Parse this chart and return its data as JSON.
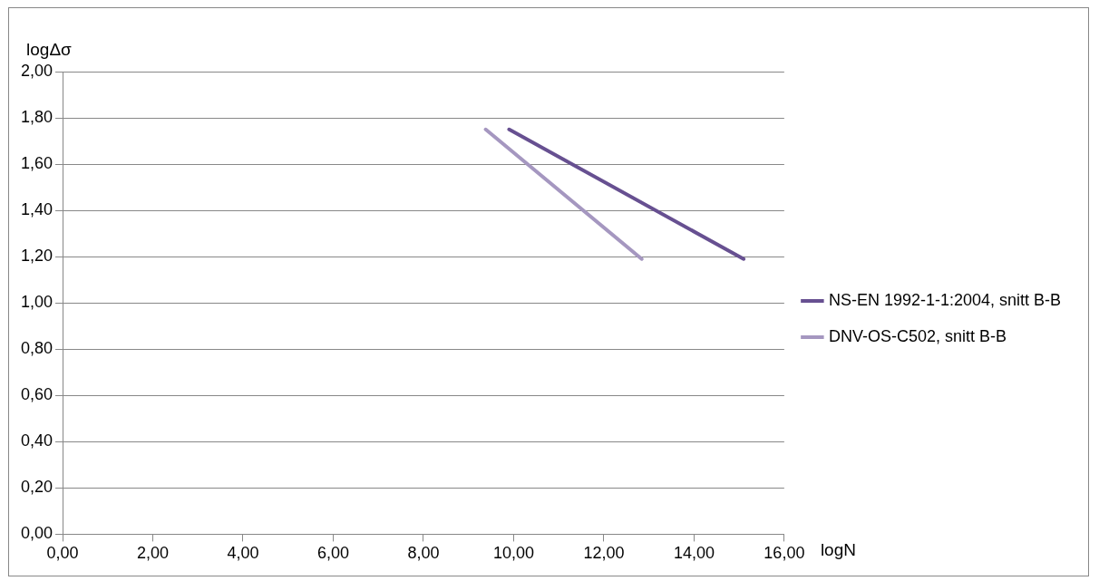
{
  "chart_data": {
    "type": "line",
    "xlabel": "logN",
    "ylabel": "logΔσ",
    "series": [
      {
        "name": "NS-EN 1992-1-1:2004, snitt B-B",
        "color": "#675091",
        "x": [
          9.9,
          15.1
        ],
        "values": [
          1.75,
          1.19
        ]
      },
      {
        "name": "DNV-OS-C502, snitt B-B",
        "color": "#a597c0",
        "x": [
          9.38,
          12.84
        ],
        "values": [
          1.75,
          1.19
        ]
      }
    ],
    "xlim": [
      0,
      16
    ],
    "xticks": [
      {
        "value": 0,
        "label": "0,00"
      },
      {
        "value": 2,
        "label": "2,00"
      },
      {
        "value": 4,
        "label": "4,00"
      },
      {
        "value": 6,
        "label": "6,00"
      },
      {
        "value": 8,
        "label": "8,00"
      },
      {
        "value": 10,
        "label": "10,00"
      },
      {
        "value": 12,
        "label": "12,00"
      },
      {
        "value": 14,
        "label": "14,00"
      },
      {
        "value": 16,
        "label": "16,00"
      }
    ],
    "ylim": [
      0,
      2
    ],
    "yticks": [
      {
        "value": 0,
        "label": "0,00"
      },
      {
        "value": 0.2,
        "label": "0,20"
      },
      {
        "value": 0.4,
        "label": "0,40"
      },
      {
        "value": 0.6,
        "label": "0,60"
      },
      {
        "value": 0.8,
        "label": "0,80"
      },
      {
        "value": 1,
        "label": "1,00"
      },
      {
        "value": 1.2,
        "label": "1,20"
      },
      {
        "value": 1.4,
        "label": "1,40"
      },
      {
        "value": 1.6,
        "label": "1,60"
      },
      {
        "value": 1.8,
        "label": "1,80"
      },
      {
        "value": 2,
        "label": "2,00"
      }
    ],
    "grid": "y",
    "legend": "right",
    "marker": "none",
    "line_style": "solid"
  }
}
